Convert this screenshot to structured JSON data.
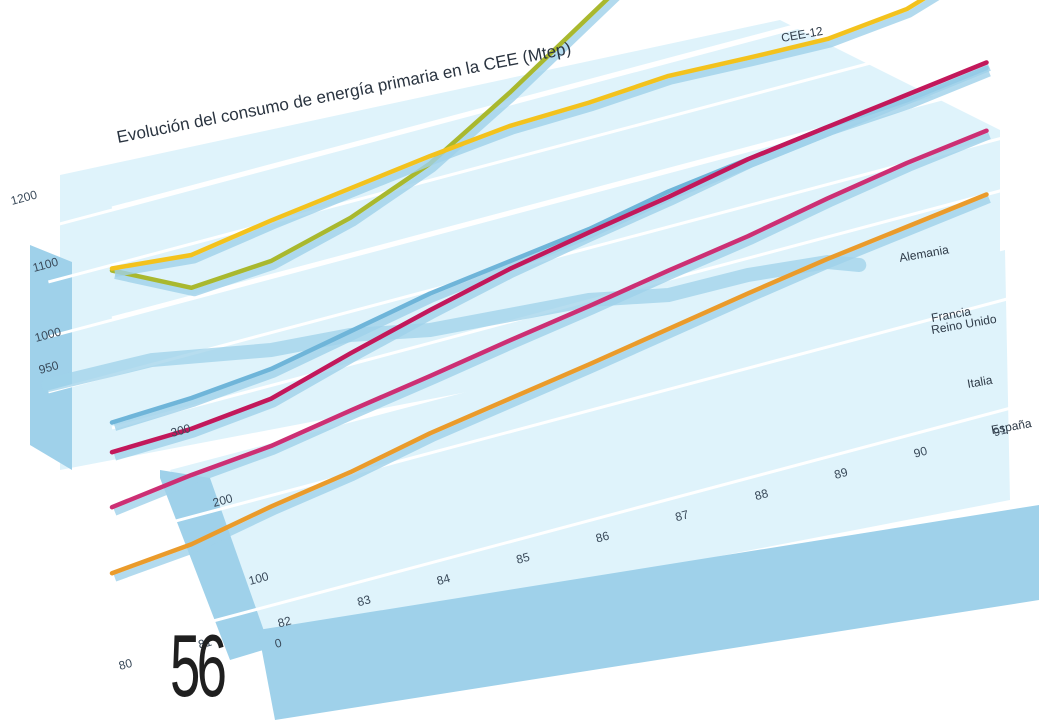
{
  "page_number": "56",
  "chart_data": {
    "type": "line",
    "title": "Evolución del consumo de energía primaria en la CEE (Mtep)",
    "x": [
      "80",
      "81",
      "82",
      "83",
      "84",
      "85",
      "86",
      "87",
      "88",
      "89",
      "90",
      "91"
    ],
    "ticks_lower": [
      "0",
      "100",
      "200",
      "300"
    ],
    "ticks_upper": [
      "950",
      "1000",
      "1100",
      "1200"
    ],
    "colors": {
      "cee": "#a9b82e",
      "alemania": "#f3c21d",
      "francia": "#c2185b",
      "reino_unido": "#6fb5d9",
      "italia": "#cc2f74",
      "espana": "#ea9b2b",
      "panel": "#dff3fb",
      "base": "#9fd1ea",
      "grid": "#ffffff"
    },
    "series": [
      {
        "key": "cee",
        "name": "CEE-12",
        "panel": "upper",
        "values": [
          1045,
          1010,
          1015,
          1035,
          1065,
          1110,
          1160,
          1210,
          1230,
          1255,
          1265,
          1345
        ]
      },
      {
        "key": "alemania",
        "name": "Alemania",
        "panel": "lower",
        "values": [
          345,
          338,
          350,
          360,
          370,
          378,
          380,
          385,
          382,
          380,
          388,
          413
        ]
      },
      {
        "key": "reino_unido",
        "name": "Reino Unido",
        "panel": "lower",
        "values": [
          205,
          208,
          215,
          230,
          245,
          255,
          265,
          280,
          290,
          300,
          305,
          315
        ]
      },
      {
        "key": "francia",
        "name": "Francia",
        "panel": "lower",
        "values": [
          178,
          180,
          188,
          210,
          230,
          248,
          262,
          275,
          290,
          300,
          310,
          320
        ]
      },
      {
        "key": "italia",
        "name": "Italia",
        "panel": "lower",
        "values": [
          128,
          138,
          145,
          158,
          170,
          183,
          195,
          208,
          220,
          235,
          248,
          258
        ]
      },
      {
        "key": "espana",
        "name": "España",
        "panel": "lower",
        "values": [
          68,
          75,
          90,
          102,
          118,
          130,
          142,
          155,
          168,
          180,
          190,
          200
        ]
      }
    ]
  }
}
